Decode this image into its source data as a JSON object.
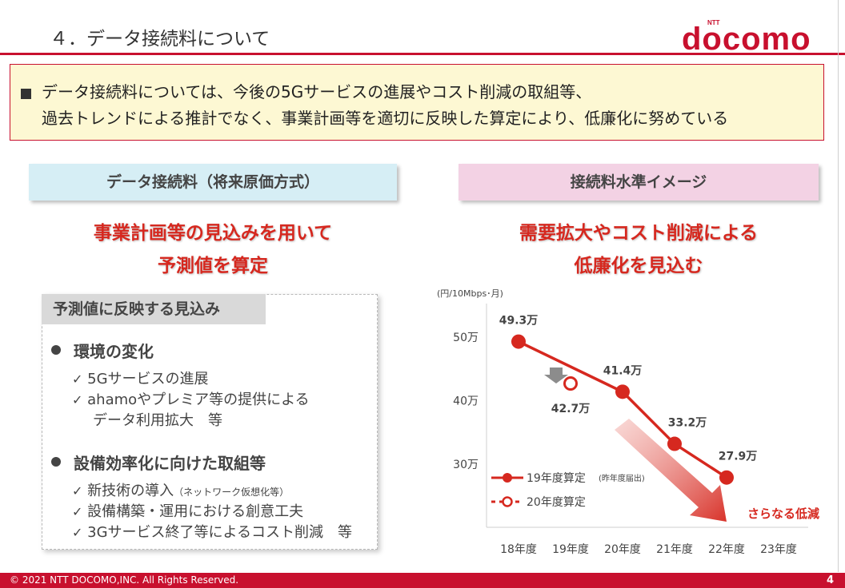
{
  "header": {
    "title": "４．データ接続料について",
    "logo_small": "NTT",
    "logo_main": "docomo"
  },
  "summary": {
    "line1": "データ接続料については、今後の5Gサービスの進展やコスト削減の取組等、",
    "line2": "過去トレンドによる推計でなく、事業計画等を適切に反映した算定により、低廉化に努めている"
  },
  "left": {
    "section_title": "データ接続料（将来原価方式）",
    "headline_1": "事業計画等の見込みを用いて",
    "headline_2": "予測値を算定",
    "panel_title": "予測値に反映する見込み",
    "groups": [
      {
        "label": "環境の変化",
        "items": [
          {
            "text": "5Gサービスの進展",
            "note": ""
          },
          {
            "text": "ahamoやプレミア等の提供による",
            "note": ""
          },
          {
            "text": "データ利用拡大　等",
            "note": ""
          }
        ]
      },
      {
        "label": "設備効率化に向けた取組等",
        "items": [
          {
            "text": "新技術の導入",
            "note": "（ネットワーク仮想化等）"
          },
          {
            "text": "設備構築・運用における創意工夫",
            "note": ""
          },
          {
            "text": "3Gサービス終了等によるコスト削減　等",
            "note": ""
          }
        ]
      }
    ],
    "check_mark": "✓"
  },
  "right": {
    "section_title": "接続料水準イメージ",
    "headline_1": "需要拡大やコスト削減による",
    "headline_2": "低廉化を見込む"
  },
  "chart_data": {
    "type": "line",
    "unit": "(円/10Mbps･月)",
    "categories": [
      "18年度",
      "19年度",
      "20年度",
      "21年度",
      "22年度",
      "23年度"
    ],
    "y_ticks": [
      {
        "value": 500000,
        "label": "50万"
      },
      {
        "value": 400000,
        "label": "40万"
      },
      {
        "value": 300000,
        "label": "30万"
      }
    ],
    "ylim": [
      240000,
      560000
    ],
    "series": [
      {
        "name": "19年度算定",
        "name_note": "(昨年度届出)",
        "style": "solid",
        "color": "#d6281f",
        "points": [
          {
            "category": "18年度",
            "value": 493000,
            "label": "49.3万"
          },
          {
            "category": "20年度",
            "value": 414000,
            "label": "41.4万"
          },
          {
            "category": "21年度",
            "value": 332000,
            "label": "33.2万"
          },
          {
            "category": "22年度",
            "value": 279000,
            "label": "27.9万"
          }
        ]
      },
      {
        "name": "20年度算定",
        "name_note": "",
        "style": "dashed-open",
        "color": "#d6281f",
        "points": [
          {
            "category": "19年度",
            "value": 427000,
            "label": "42.7万"
          }
        ]
      }
    ],
    "annotation": "さらなる低減"
  },
  "footer": {
    "copyright": "© 2021 NTT DOCOMO,INC. All Rights Reserved.",
    "page": "4"
  },
  "colors": {
    "brand_red": "#c8102e",
    "accent_red": "#d6281f",
    "summary_bg": "#fdf8d3",
    "left_head_bg": "#d6eef5",
    "right_head_bg": "#f3d2e4"
  }
}
